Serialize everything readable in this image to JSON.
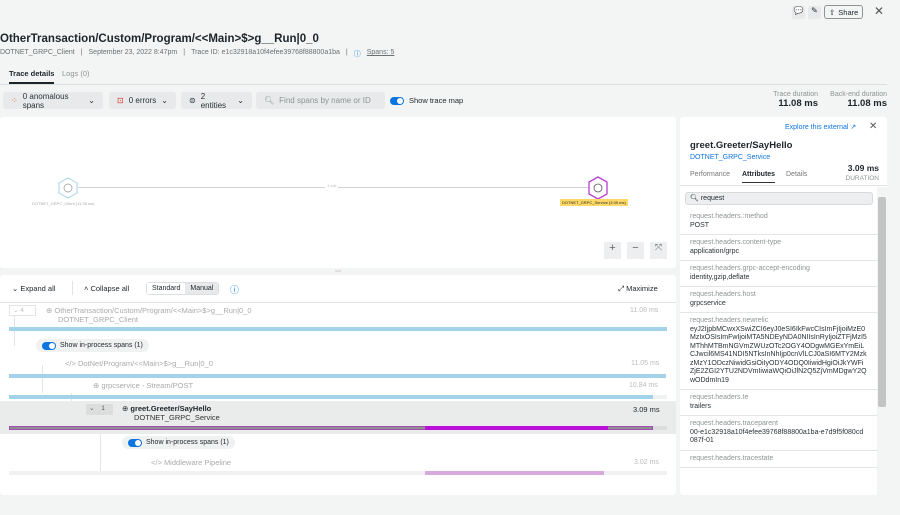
{
  "header": {
    "title": "OtherTransaction/Custom/Program/<<Main>$>g__Run|0_0",
    "entity": "DOTNET_GRPC_Client",
    "date": "September 23, 2022 8:47pm",
    "trace_id": "Trace ID: e1c32918a10f4efee39768f88800a1ba",
    "spans": "Spans: 5",
    "share": "Share"
  },
  "tabs": [
    {
      "label": "Trace details",
      "active": true
    },
    {
      "label": "Logs (0)"
    }
  ],
  "toolbar": {
    "anomalous": "0 anomalous spans",
    "errors": "0 errors",
    "entities": "2 entities",
    "search_placeholder": "Find spans by name or ID",
    "show_map": "Show trace map",
    "show_map_on": true
  },
  "durations": {
    "trace_label": "Trace duration",
    "trace_value": "11.08 ms",
    "backend_label": "Back-end duration",
    "backend_value": "11.08 ms"
  },
  "map": {
    "client": "DOTNET_GRPC_Client (11.08 ms)",
    "service": "DOTNET_GRPC_Service (3.09 ms)",
    "edge": "1 call"
  },
  "spans_toolbar": {
    "expand": "Expand all",
    "collapse": "Collapse all",
    "standard": "Standard",
    "manual": "Manual",
    "maximize": "Maximize"
  },
  "spans": [
    {
      "count": "4",
      "name": "OtherTransaction/Custom/Program/<<Main>$>g__Run|0_0",
      "entity": "DOTNET_GRPC_Client",
      "duration": "11.08 ms"
    },
    {
      "toggle": "Show in-process spans (1)"
    },
    {
      "name": "DotNet/Program/<<Main>$>g__Run|0_0",
      "duration": "11.05 ms"
    },
    {
      "name": "grpcservice - Stream/POST",
      "duration": "10.84 ms"
    },
    {
      "count": "1",
      "name": "greet.Greeter/SayHello",
      "entity": "DOTNET_GRPC_Service",
      "duration": "3.09 ms"
    },
    {
      "toggle": "Show in-process spans (1)"
    },
    {
      "name": "Middleware Pipeline",
      "duration": "3.02 ms"
    }
  ],
  "colors": {
    "accent": "#0c74df",
    "client_bar": "#a3d3ea",
    "service_bar": "#b90fd6",
    "service_light": "#d8a8df",
    "highlight": "#ffd966"
  },
  "detail": {
    "explore": "Explore this external",
    "title": "greet.Greeter/SayHello",
    "entity": "DOTNET_GRPC_Service",
    "duration": "3.09 ms",
    "duration_label": "DURATION",
    "tabs": [
      "Performance",
      "Attributes",
      "Details"
    ],
    "active_tab": "Attributes",
    "search_value": "request",
    "attributes": [
      {
        "k": "request.headers.:method",
        "v": "POST"
      },
      {
        "k": "request.headers.content-type",
        "v": "application/grpc"
      },
      {
        "k": "request.headers.grpc-accept-encoding",
        "v": "identity,gzip,deflate"
      },
      {
        "k": "request.headers.host",
        "v": "grpcservice"
      },
      {
        "k": "request.headers.newrelic",
        "v": "eyJ2IjpbMCwxXSwiZCI6eyJ0eSI6IkFwcCIsImFjIjoiMzE0MzIxOSIsImFwIjoiMTA5NDEyNDA0NIIsInRyIjoiZTFjMzI5MThhMTBmNGVmZWUzOTc2OGY4ODgwMGExYmEiLCJwcil6MS41NDI5NTksInNhIjp0cnVlLCJ0aSI6MTY2MzkzMzY1ODczNiwidGsiOiIyODY4ODQ0IiwidHgiOiJkYWFiZjE2ZGI2YTU2NDVmIiwiaWQiOiJlN2Q5ZjVmMDgwY2QwODdmIn19"
      },
      {
        "k": "request.headers.te",
        "v": "trailers"
      },
      {
        "k": "request.headers.traceparent",
        "v": "00-e1c32918a10f4efee39768f88800a1ba-e7d9f5f080cd087f-01"
      },
      {
        "k": "request.headers.tracestate",
        "v": ""
      }
    ]
  }
}
